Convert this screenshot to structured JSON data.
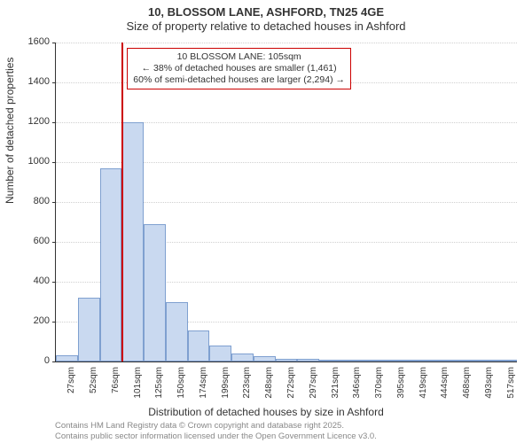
{
  "title": {
    "main": "10, BLOSSOM LANE, ASHFORD, TN25 4GE",
    "sub": "Size of property relative to detached houses in Ashford"
  },
  "chart": {
    "type": "histogram",
    "ylabel": "Number of detached properties",
    "xlabel": "Distribution of detached houses by size in Ashford",
    "ylim": [
      0,
      1600
    ],
    "ytick_step": 200,
    "yticks": [
      0,
      200,
      400,
      600,
      800,
      1000,
      1200,
      1400,
      1600
    ],
    "categories": [
      "27sqm",
      "52sqm",
      "76sqm",
      "101sqm",
      "125sqm",
      "150sqm",
      "174sqm",
      "199sqm",
      "223sqm",
      "248sqm",
      "272sqm",
      "297sqm",
      "321sqm",
      "346sqm",
      "370sqm",
      "395sqm",
      "419sqm",
      "444sqm",
      "468sqm",
      "493sqm",
      "517sqm"
    ],
    "values": [
      30,
      320,
      970,
      1200,
      690,
      300,
      155,
      80,
      40,
      25,
      15,
      12,
      10,
      8,
      6,
      5,
      5,
      4,
      3,
      3,
      2
    ],
    "bar_fill": "#c9d9f0",
    "bar_border": "#7fa0d0",
    "grid_color": "#d0d0d0",
    "background_color": "#ffffff",
    "marker": {
      "bin_index": 3,
      "color": "#cc0000"
    },
    "annotation": {
      "line1": "10 BLOSSOM LANE: 105sqm",
      "line2": "← 38% of detached houses are smaller (1,461)",
      "line3": "60% of semi-detached houses are larger (2,294) →",
      "border_color": "#cc0000",
      "fontsize": 10.5
    }
  },
  "footer": {
    "line1": "Contains HM Land Registry data © Crown copyright and database right 2025.",
    "line2": "Contains public sector information licensed under the Open Government Licence v3.0."
  }
}
